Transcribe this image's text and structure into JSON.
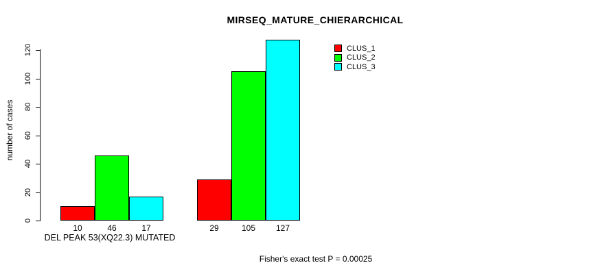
{
  "chart_data": {
    "type": "bar",
    "title": "MIRSEQ_MATURE_CHIERARCHICAL",
    "ylabel": "number of cases",
    "xlabel": "DEL PEAK 53(XQ22.3) MUTATED",
    "annotation": "Fisher's exact test P = 0.00025",
    "ylim": [
      0,
      120
    ],
    "yticks": [
      0,
      20,
      40,
      60,
      80,
      100,
      120
    ],
    "grid": false,
    "background_color": "#ffffff",
    "bar_outline_color": "#000000",
    "legend": {
      "position": "top-right",
      "entries": [
        {
          "label": "CLUS_1",
          "color": "#ff0000"
        },
        {
          "label": "CLUS_2",
          "color": "#00ff00"
        },
        {
          "label": "CLUS_3",
          "color": "#00ffff"
        }
      ]
    },
    "series": [
      {
        "name": "CLUS_1",
        "color": "#ff0000",
        "values": [
          10,
          29
        ]
      },
      {
        "name": "CLUS_2",
        "color": "#00ff00",
        "values": [
          46,
          105
        ]
      },
      {
        "name": "CLUS_3",
        "color": "#00ffff",
        "values": [
          17,
          127
        ]
      }
    ],
    "groups": [
      {
        "bars": [
          {
            "value": 10,
            "label": "10",
            "color": "#ff0000",
            "series": "CLUS_1"
          },
          {
            "value": 46,
            "label": "46",
            "color": "#00ff00",
            "series": "CLUS_2"
          },
          {
            "value": 17,
            "label": "17",
            "color": "#00ffff",
            "series": "CLUS_3"
          }
        ]
      },
      {
        "bars": [
          {
            "value": 29,
            "label": "29",
            "color": "#ff0000",
            "series": "CLUS_1"
          },
          {
            "value": 105,
            "label": "105",
            "color": "#00ff00",
            "series": "CLUS_2"
          },
          {
            "value": 127,
            "label": "127",
            "color": "#00ffff",
            "series": "CLUS_3"
          }
        ]
      }
    ]
  }
}
